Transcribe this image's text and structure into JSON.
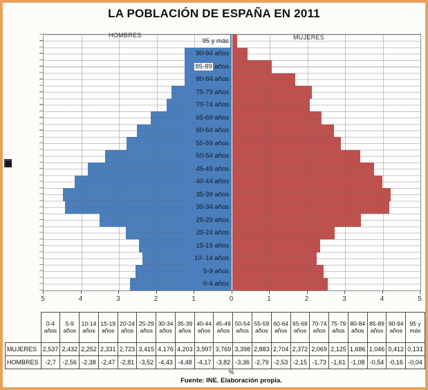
{
  "title": "LA POBLACIÓN DE ESPAÑA EN 2011",
  "chart_data": {
    "type": "bar",
    "subtype": "population-pyramid",
    "title": "LA POBLACIÓN DE ESPAÑA EN 2011",
    "left_series_label": "HOMBRES",
    "right_series_label": "MUJERES",
    "categories": [
      "0-4 años",
      "5-9 años",
      "10- 14 años",
      "15-19 años",
      "20-24 años",
      "25-29 años",
      "30-34 años",
      "35-39 años",
      "40-44 años",
      "45-49 años",
      "50-54 años",
      "55-59 años",
      "60-64 años",
      "65-69 años",
      "70-74 años",
      "75-79 años",
      "80-84 años",
      "85-89 años",
      "90-94 años",
      "95 y más"
    ],
    "series": [
      {
        "name": "HOMBRES",
        "side": "left",
        "color": "#4A7EBC",
        "values": [
          -2.7,
          -2.56,
          -2.38,
          -2.47,
          -2.81,
          -3.52,
          -4.43,
          -4.48,
          -4.17,
          -3.82,
          -3.36,
          -2.79,
          -2.53,
          -2.15,
          -1.73,
          -1.61,
          -1.08,
          -0.54,
          -0.16,
          -0.04
        ]
      },
      {
        "name": "MUJERES",
        "side": "right",
        "color": "#C0504D",
        "values": [
          2.537,
          2.432,
          2.252,
          2.331,
          2.723,
          3.415,
          4.176,
          4.203,
          3.997,
          3.769,
          3.398,
          2.883,
          2.704,
          2.372,
          2.069,
          2.125,
          1.686,
          1.046,
          0.412,
          0.131
        ]
      }
    ],
    "xlabel": "%",
    "xlim": [
      -5,
      5
    ],
    "x_ticks": [
      "5",
      "4",
      "3",
      "2",
      "1",
      "0",
      "1",
      "2",
      "3",
      "4",
      "5"
    ],
    "grid": true,
    "legend_position": "top-inside",
    "label_styles": {
      "no_fill": [
        "95 y más"
      ],
      "highlight_prefix": {
        "85-89 años": "85-89"
      }
    }
  },
  "table": {
    "row_headers": [
      "MUJERES",
      "HOMBRES"
    ],
    "col_headers": [
      "0-4 años",
      "5-9 años",
      "10-14 años",
      "15-19 años",
      "20-24 años",
      "25-29 años",
      "30-34 años",
      "35-39 años",
      "40-44 años",
      "45-49 años",
      "50-54 años",
      "55-59 años",
      "60-64 años",
      "65-69 años",
      "70-74 años",
      "75-79 años",
      "80-84 años",
      "85-89 años",
      "90-94 años",
      "95 y más"
    ],
    "rows": [
      [
        "2,537",
        "2,432",
        "2,252",
        "2,331",
        "2,723",
        "3,415",
        "4,176",
        "4,203",
        "3,997",
        "3,769",
        "3,398",
        "2,883",
        "2,704",
        "2,372",
        "2,069",
        "2,125",
        "1,686",
        "1,046",
        "0,412",
        "0,131"
      ],
      [
        "-2,7",
        "-2,56",
        "-2,38",
        "-2,47",
        "-2,81",
        "-3,52",
        "-4,43",
        "-4,48",
        "-4,17",
        "-3,82",
        "-3,36",
        "-2,79",
        "-2,53",
        "-2,15",
        "-1,73",
        "-1,61",
        "-1,08",
        "-0,54",
        "-0,16",
        "-0,04"
      ]
    ]
  },
  "footer": {
    "percent_label": "%",
    "source": "Fuente: INE. Elaboración propia."
  },
  "colors": {
    "frame_border": "#E8A25D",
    "hombres_bar": "#4A7EBC",
    "mujeres_bar": "#C0504D",
    "gridline": "#9a9a9a"
  }
}
